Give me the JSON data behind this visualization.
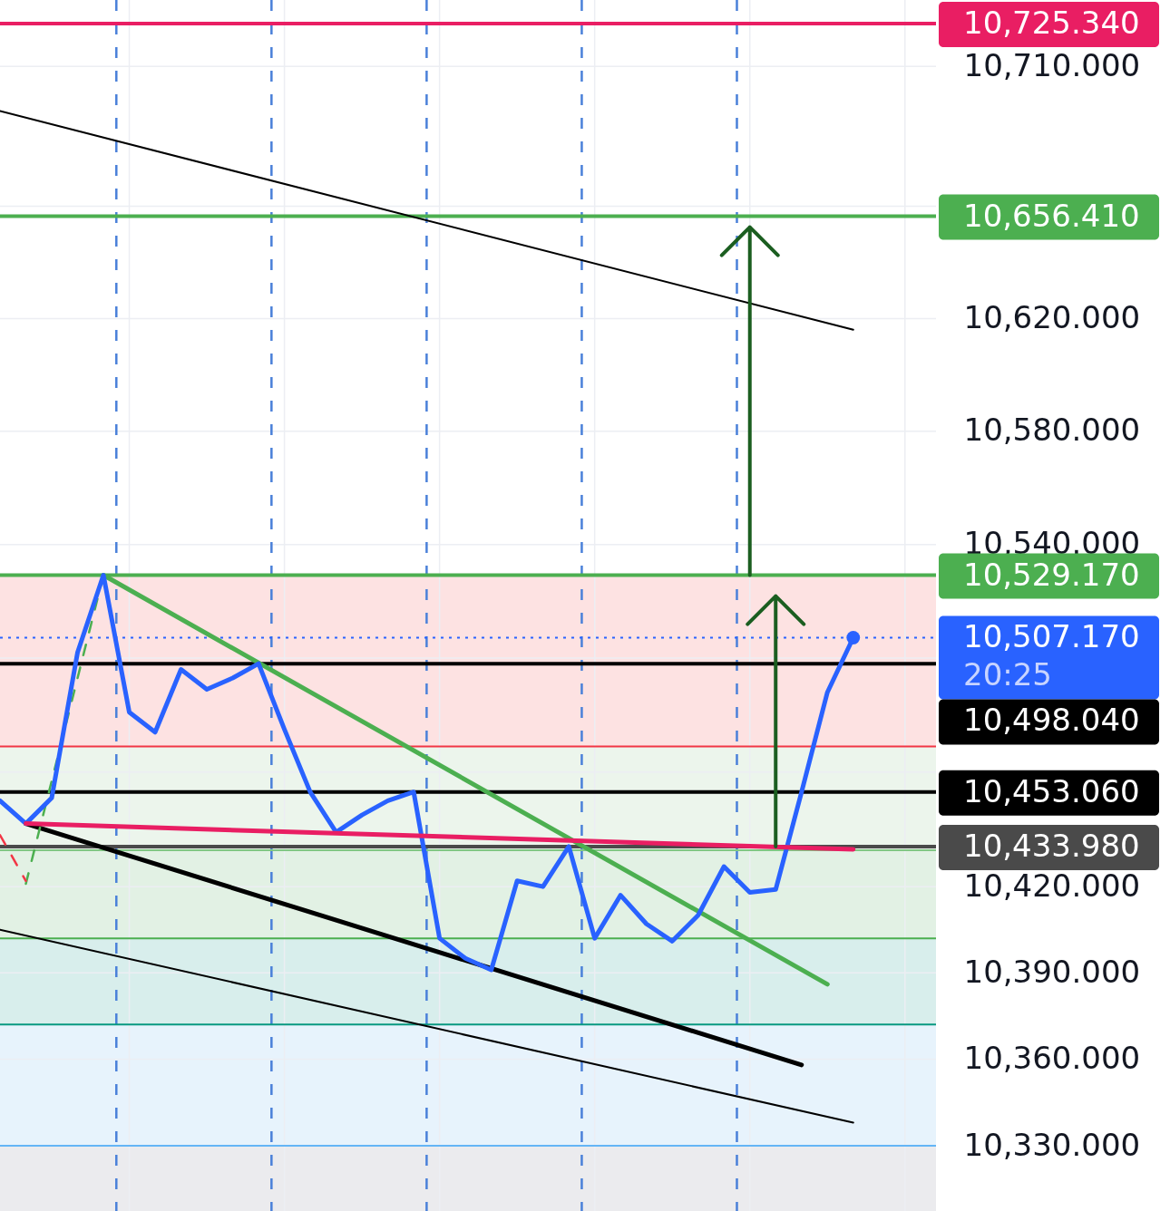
{
  "chart_data": {
    "type": "line",
    "log": true,
    "grid": true,
    "tick_labels": "y",
    "categories": [
      null,
      null,
      null,
      null,
      null,
      null,
      null,
      null,
      null,
      null,
      null,
      null,
      null,
      null,
      null,
      null,
      null,
      null,
      null,
      null,
      null,
      null,
      null,
      null,
      null,
      null,
      null,
      null,
      null,
      null,
      null,
      null,
      null,
      null
    ],
    "ylim": [
      10307.5,
      10733.8
    ],
    "yticks": [
      {
        "value": 10330,
        "label": "10,330.000"
      },
      {
        "value": 10360,
        "label": "10,360.000"
      },
      {
        "value": 10390,
        "label": "10,390.000"
      },
      {
        "value": 10420,
        "label": "10,420.000"
      },
      {
        "value": 10460,
        "label": null
      },
      {
        "value": 10500,
        "label": null
      },
      {
        "value": 10540,
        "label": "10,540.000"
      },
      {
        "value": 10580,
        "label": "10,580.000"
      },
      {
        "value": 10620,
        "label": "10,620.000"
      },
      {
        "value": 10660,
        "label": null
      },
      {
        "value": 10710,
        "label": "10,710.000"
      }
    ],
    "series": [
      {
        "color": "#000000",
        "values": [
          10694,
          null,
          null,
          null,
          null,
          null,
          null,
          null,
          null,
          null,
          null,
          null,
          null,
          null,
          null,
          null,
          null,
          null,
          null,
          null,
          null,
          null,
          null,
          null,
          null,
          null,
          null,
          null,
          null,
          null,
          null,
          null,
          null,
          10616
        ]
      },
      {
        "color": "#000000",
        "values": [
          10405,
          null,
          null,
          null,
          null,
          null,
          null,
          null,
          null,
          null,
          null,
          null,
          null,
          null,
          null,
          null,
          null,
          null,
          null,
          null,
          null,
          null,
          null,
          null,
          null,
          null,
          null,
          null,
          null,
          null,
          null,
          null,
          null,
          10338
        ]
      },
      {
        "color": "#000000",
        "values": [
          null,
          10442,
          null,
          null,
          null,
          null,
          null,
          null,
          null,
          null,
          null,
          null,
          null,
          null,
          null,
          null,
          null,
          null,
          null,
          null,
          null,
          null,
          null,
          null,
          null,
          null,
          null,
          null,
          null,
          null,
          null,
          10358,
          null,
          null
        ]
      },
      {
        "color": "#4caf50",
        "values": [
          null,
          null,
          null,
          null,
          10529.17,
          null,
          null,
          null,
          null,
          null,
          null,
          null,
          null,
          null,
          null,
          null,
          null,
          null,
          null,
          null,
          null,
          null,
          null,
          null,
          null,
          null,
          null,
          null,
          null,
          null,
          null,
          null,
          10386,
          null
        ]
      },
      {
        "color": "#4caf50",
        "line_style": "dashed",
        "values": [
          null,
          10421,
          null,
          null,
          10529.17,
          null,
          null,
          null,
          null,
          null,
          null,
          null,
          null,
          null,
          null,
          null,
          null,
          null,
          null,
          null,
          null,
          null,
          null,
          null,
          null,
          null,
          null,
          null,
          null,
          null,
          null,
          null,
          null,
          null
        ]
      },
      {
        "color": "#f23645",
        "line_style": "dashed",
        "values": [
          10438,
          10422,
          null,
          null,
          null,
          null,
          null,
          null,
          null,
          null,
          null,
          null,
          null,
          null,
          null,
          null,
          null,
          null,
          null,
          null,
          null,
          null,
          null,
          null,
          null,
          null,
          null,
          null,
          null,
          null,
          null,
          null,
          null,
          null
        ]
      },
      {
        "color": "#2962ff",
        "values": [
          10450,
          10442,
          10451,
          10502,
          10529.17,
          10481,
          10474,
          10496,
          10489,
          10493,
          10498.04,
          10475,
          10453,
          10439,
          10445,
          10450,
          10453.06,
          10402,
          10395,
          10391,
          10422,
          10420,
          10433.98,
          10402,
          10417,
          10407,
          10401,
          10410,
          10427,
          10418,
          10419,
          10453,
          10488,
          10507.17
        ]
      },
      {
        "color": "#e91e63",
        "values": [
          null,
          10442,
          null,
          null,
          null,
          null,
          null,
          null,
          null,
          null,
          null,
          null,
          null,
          null,
          null,
          null,
          null,
          null,
          null,
          null,
          null,
          null,
          null,
          null,
          null,
          null,
          null,
          null,
          null,
          null,
          null,
          null,
          null,
          10433
        ]
      },
      {
        "type": "scatter",
        "color": "#2962ff",
        "values": [
          null,
          null,
          null,
          null,
          null,
          null,
          null,
          null,
          null,
          null,
          null,
          null,
          null,
          null,
          null,
          null,
          null,
          null,
          null,
          null,
          null,
          null,
          null,
          null,
          null,
          null,
          null,
          null,
          null,
          null,
          null,
          null,
          null,
          10507.17
        ]
      }
    ],
    "ref_lines": [
      {
        "axis": "y",
        "value": 10725.34,
        "label": "10,725.340",
        "color": "#e91e63"
      },
      {
        "axis": "y",
        "value": 10656.41,
        "label": "10,656.410",
        "color": "#4caf50"
      },
      {
        "axis": "y",
        "value": 10529.17,
        "label": "10,529.170",
        "color": "#4caf50"
      },
      {
        "axis": "y",
        "value": 10507.17,
        "label": "10,507.170\n20:25",
        "color": "#2962ff",
        "line_style": "dotted"
      },
      {
        "axis": "y",
        "value": 10433.98,
        "label": "10,433.980",
        "color": "#4a4a4a"
      },
      {
        "axis": "y",
        "value": 10498.04,
        "label": "10,498.040",
        "color": "#000000"
      },
      {
        "axis": "y",
        "value": 10453.06,
        "label": "10,453.060",
        "color": "#000000"
      },
      {
        "axis": "y",
        "value": 10469,
        "color": "#f23645"
      },
      {
        "axis": "y",
        "value": 10432.7,
        "color": "#81c784"
      },
      {
        "axis": "y",
        "value": 10402,
        "color": "#4caf50"
      },
      {
        "axis": "y",
        "value": 10372,
        "color": "#089981"
      },
      {
        "axis": "y",
        "value": 10330,
        "color": "#64b5f6"
      }
    ],
    "bands": [
      {
        "axis": "y",
        "from": 10469,
        "to": 10529.17,
        "color": "#fde2e2"
      },
      {
        "axis": "y",
        "from": 10432.7,
        "to": 10469,
        "color": "#ecf5ec"
      },
      {
        "axis": "y",
        "from": 10402,
        "to": 10432.7,
        "color": "#e2f1e4"
      },
      {
        "axis": "y",
        "from": 10372,
        "to": 10402,
        "color": "#d8eeec"
      },
      {
        "axis": "y",
        "from": 10330,
        "to": 10372,
        "color": "#e7f3fc"
      },
      {
        "axis": "y",
        "from": 10307.5,
        "to": 10330,
        "color": "#ebebee"
      }
    ]
  }
}
